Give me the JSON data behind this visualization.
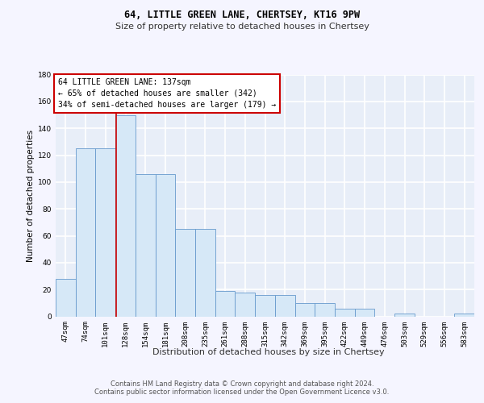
{
  "title1": "64, LITTLE GREEN LANE, CHERTSEY, KT16 9PW",
  "title2": "Size of property relative to detached houses in Chertsey",
  "xlabel": "Distribution of detached houses by size in Chertsey",
  "ylabel": "Number of detached properties",
  "footer1": "Contains HM Land Registry data © Crown copyright and database right 2024.",
  "footer2": "Contains public sector information licensed under the Open Government Licence v3.0.",
  "annotation_line1": "64 LITTLE GREEN LANE: 137sqm",
  "annotation_line2": "← 65% of detached houses are smaller (342)",
  "annotation_line3": "34% of semi-detached houses are larger (179) →",
  "bin_labels": [
    "47sqm",
    "74sqm",
    "101sqm",
    "128sqm",
    "154sqm",
    "181sqm",
    "208sqm",
    "235sqm",
    "261sqm",
    "288sqm",
    "315sqm",
    "342sqm",
    "369sqm",
    "395sqm",
    "422sqm",
    "449sqm",
    "476sqm",
    "503sqm",
    "529sqm",
    "556sqm",
    "583sqm"
  ],
  "bar_values": [
    28,
    125,
    125,
    150,
    106,
    106,
    65,
    65,
    19,
    18,
    16,
    16,
    10,
    10,
    6,
    6,
    0,
    2,
    0,
    0,
    2
  ],
  "bar_color": "#d6e8f7",
  "bar_edge_color": "#6699cc",
  "red_line_x": 2.54,
  "ylim": [
    0,
    180
  ],
  "yticks": [
    0,
    20,
    40,
    60,
    80,
    100,
    120,
    140,
    160,
    180
  ],
  "plot_bg_color": "#e8eef8",
  "fig_bg_color": "#f5f5ff",
  "grid_color": "#ffffff",
  "annotation_box_color": "#ffffff",
  "annotation_box_edge": "#cc0000",
  "red_line_color": "#cc0000",
  "title1_fontsize": 8.5,
  "title2_fontsize": 8.0,
  "ylabel_fontsize": 7.5,
  "xlabel_fontsize": 8.0,
  "tick_fontsize": 6.5,
  "footer_fontsize": 6.0,
  "annot_fontsize": 7.0
}
